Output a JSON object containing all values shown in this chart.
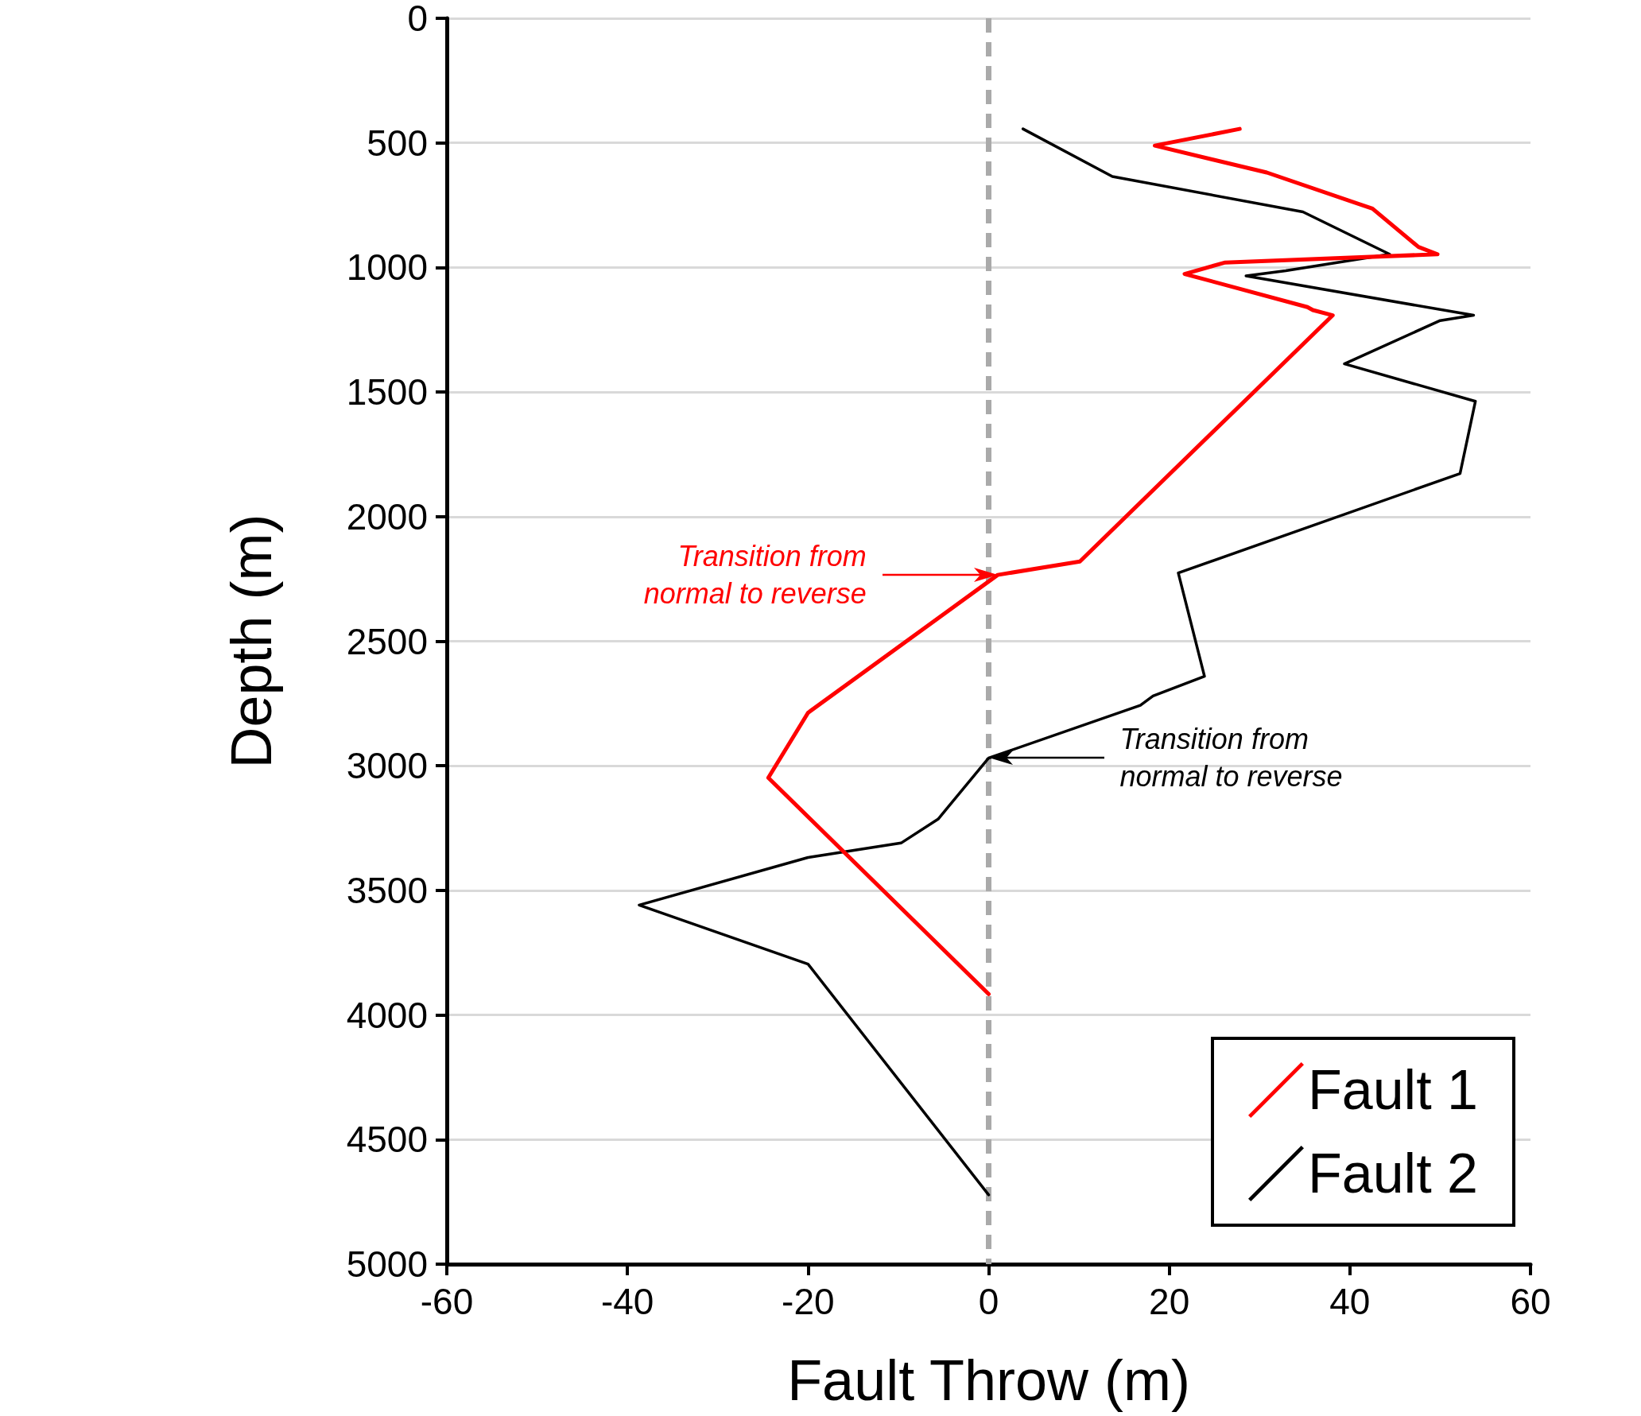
{
  "chart_data": {
    "type": "line",
    "xlabel": "Fault Throw (m)",
    "ylabel": "Depth (m)",
    "xlim": [
      -60,
      60
    ],
    "xticks": [
      -60,
      -40,
      -20,
      0,
      20,
      40,
      60
    ],
    "ylim": [
      5000,
      0
    ],
    "yticks": [
      0,
      500,
      1000,
      1500,
      2000,
      2500,
      3000,
      3500,
      4000,
      4500,
      5000
    ],
    "grid": "y",
    "legend": "bottom right",
    "marker": "none",
    "line_style": "solid",
    "series": [
      {
        "name": "Fault 1",
        "color": "#ff0000",
        "x": [
          27.8,
          18.4,
          30.8,
          42.5,
          47.6,
          49.7,
          26.2,
          21.7,
          35.3,
          35.9,
          38.1,
          10.1,
          1.0,
          -20.0,
          -24.4,
          0
        ],
        "values": [
          444,
          511,
          619,
          764,
          918,
          947,
          980,
          1026,
          1159,
          1171,
          1192,
          2180,
          2234,
          2787,
          3048,
          3916
        ]
      },
      {
        "name": "Fault 2",
        "color": "#000000",
        "x": [
          3.8,
          13.7,
          34.8,
          44.4,
          32.9,
          28.5,
          53.7,
          50.0,
          39.4,
          53.9,
          52.2,
          21.0,
          23.9,
          18.2,
          16.8,
          0,
          -5.6,
          -9.7,
          -20.0,
          -38.7,
          -20.0,
          0
        ],
        "values": [
          444,
          635,
          777,
          947,
          1013,
          1034,
          1192,
          1213,
          1387,
          1537,
          1827,
          2226,
          2641,
          2720,
          2757,
          2969,
          3214,
          3310,
          3368,
          3559,
          3796,
          4722
        ]
      }
    ],
    "ref_lines": [
      {
        "axis": "x",
        "value": 0,
        "color": "#aaaaaa",
        "line_style": "dashed"
      }
    ],
    "annotations": [
      "Transition from\nnormal to reverse",
      "Transition from\nnormal to reverse"
    ]
  }
}
